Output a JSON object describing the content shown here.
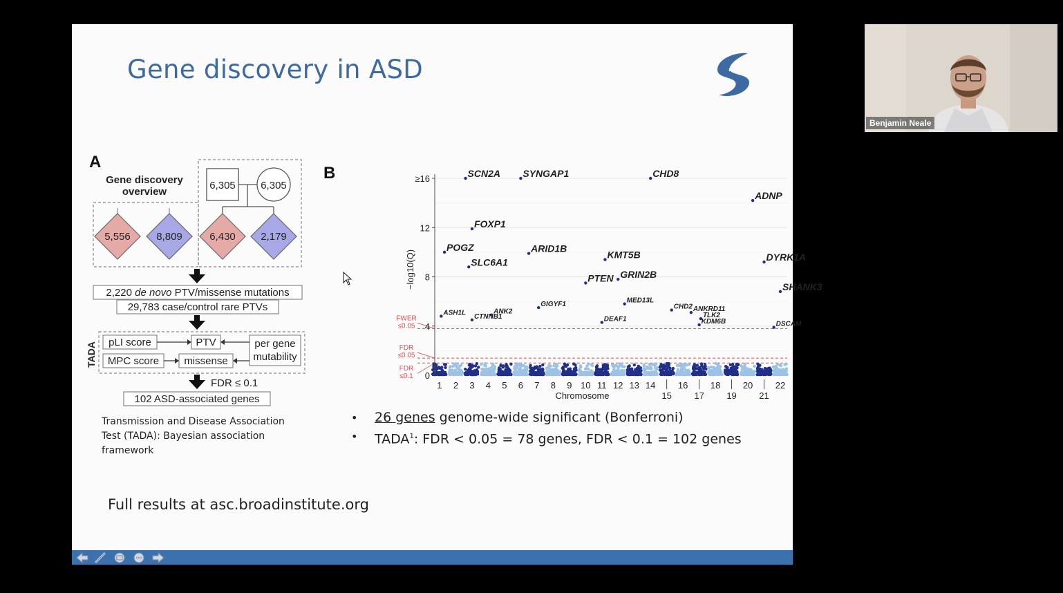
{
  "slide": {
    "title": "Gene discovery in ASD",
    "accent_color": "#3d6aa2",
    "nav_bar_color": "#3b72ad",
    "panel_a": {
      "letter": "A",
      "overview_title_line1": "Gene discovery",
      "overview_title_line2": "overview",
      "parent_box_label": "6,305",
      "parent_circle_label": "6,305",
      "diamonds": [
        {
          "label": "5,556",
          "color": "#e5aaa6"
        },
        {
          "label": "8,809",
          "color": "#a9a8e7"
        },
        {
          "label": "6,430",
          "color": "#e5aaa6"
        },
        {
          "label": "2,179",
          "color": "#a9a8e7"
        }
      ],
      "mutations_prefix": "2,220 ",
      "mutations_italic": "de novo",
      "mutations_suffix": " PTV/missense mutations",
      "case_control": "29,783 case/control rare PTVs",
      "tada_label": "TADA",
      "pli_score": "pLI score",
      "ptv": "PTV",
      "mpc_score": "MPC score",
      "missense": "missense",
      "per_gene_line1": "per gene",
      "per_gene_line2": "mutability",
      "fdr_threshold": "FDR ≤ 0.1",
      "result_genes": "102 ASD-associated genes"
    },
    "caption": "Transmission and Disease Association Test (TADA): Bayesian association framework",
    "full_results": "Full results at asc.broadinstitute.org",
    "bullets": {
      "b1_underlined": "26 genes",
      "b1_rest": " genome-wide significant (Bonferroni)",
      "b2_prefix": "TADA",
      "b2_sup": "1",
      "b2_rest": ": FDR < 0.05 = 78 genes, FDR < 0.1 = 102 genes"
    },
    "nav_icons": [
      "back-arrow-icon",
      "pen-icon",
      "slides-icon",
      "more-icon",
      "forward-arrow-icon"
    ]
  },
  "webcam": {
    "name": "Benjamin Neale"
  },
  "chart_data": {
    "type": "scatter",
    "panel_letter": "B",
    "xlabel": "Chromosome",
    "ylabel": "−log10(Q)",
    "ylim": [
      0,
      16
    ],
    "y_ticks": [
      "0",
      "4",
      "8",
      "12",
      "≥16"
    ],
    "x_ticks_top": [
      "1",
      "2",
      "3",
      "4",
      "5",
      "6",
      "7",
      "8",
      "9",
      "10",
      "11",
      "12",
      "13",
      "14",
      "16",
      "18",
      "20",
      "22"
    ],
    "x_ticks_bottom": [
      "15",
      "17",
      "19",
      "21"
    ],
    "thresholds": [
      {
        "name": "FWER ≤0.05",
        "y": 3.8
      },
      {
        "name": "FDR ≤0.05",
        "y": 1.4
      },
      {
        "name": "FDR ≤0.1",
        "y": 1.0
      }
    ],
    "labeled_genes": [
      {
        "gene": "SCN2A",
        "chr": 2.6,
        "y": 16
      },
      {
        "gene": "SYNGAP1",
        "chr": 6.0,
        "y": 16
      },
      {
        "gene": "CHD8",
        "chr": 14.0,
        "y": 16
      },
      {
        "gene": "ADNP",
        "chr": 20.3,
        "y": 14.2
      },
      {
        "gene": "FOXP1",
        "chr": 3.0,
        "y": 11.9
      },
      {
        "gene": "POGZ",
        "chr": 1.3,
        "y": 10.0
      },
      {
        "gene": "ARID1B",
        "chr": 6.5,
        "y": 9.9
      },
      {
        "gene": "KMT5B",
        "chr": 11.2,
        "y": 9.4
      },
      {
        "gene": "DYRK1A",
        "chr": 21.0,
        "y": 9.2
      },
      {
        "gene": "SLC6A1",
        "chr": 2.8,
        "y": 8.8
      },
      {
        "gene": "PTEN",
        "chr": 10.0,
        "y": 7.5
      },
      {
        "gene": "GRIN2B",
        "chr": 12.0,
        "y": 7.8
      },
      {
        "gene": "SHANK3",
        "chr": 22.0,
        "y": 6.8
      },
      {
        "gene": "GIGYF1",
        "chr": 7.1,
        "y": 5.5
      },
      {
        "gene": "MED13L",
        "chr": 12.4,
        "y": 5.8
      },
      {
        "gene": "CHD2",
        "chr": 15.3,
        "y": 5.3
      },
      {
        "gene": "ANKRD11",
        "chr": 16.5,
        "y": 5.1
      },
      {
        "gene": "ASH1L",
        "chr": 1.1,
        "y": 4.8
      },
      {
        "gene": "ANK2",
        "chr": 4.2,
        "y": 4.9
      },
      {
        "gene": "CTNNB1",
        "chr": 3.0,
        "y": 4.5
      },
      {
        "gene": "TLK2",
        "chr": 17.1,
        "y": 4.6
      },
      {
        "gene": "DEAF1",
        "chr": 11.0,
        "y": 4.3
      },
      {
        "gene": "KDM6B",
        "chr": 17.0,
        "y": 4.1
      },
      {
        "gene": "DSCAM",
        "chr": 21.6,
        "y": 3.9
      }
    ]
  }
}
